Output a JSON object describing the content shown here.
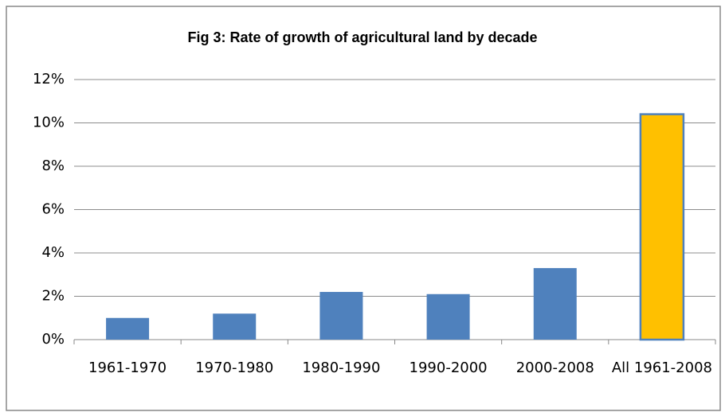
{
  "chart_data": {
    "type": "bar",
    "title": "Fig 3: Rate of growth of agricultural land by decade",
    "categories": [
      "1961-1970",
      "1970-1980",
      "1980-1990",
      "1990-2000",
      "2000-2008",
      "All 1961-2008"
    ],
    "values": [
      1.0,
      1.2,
      2.2,
      2.1,
      3.3,
      10.4
    ],
    "colors": [
      "#4f81bd",
      "#4f81bd",
      "#4f81bd",
      "#4f81bd",
      "#4f81bd",
      "#ffc000"
    ],
    "edgecolors": [
      null,
      null,
      null,
      null,
      null,
      "#4f81bd"
    ],
    "ylim": [
      0,
      12
    ],
    "yticks": [
      {
        "value": 0,
        "label": "0%"
      },
      {
        "value": 2,
        "label": "2%"
      },
      {
        "value": 4,
        "label": "4%"
      },
      {
        "value": 6,
        "label": "6%"
      },
      {
        "value": 8,
        "label": "8%"
      },
      {
        "value": 10,
        "label": "10%"
      },
      {
        "value": 12,
        "label": "12%"
      }
    ],
    "grid": true
  }
}
